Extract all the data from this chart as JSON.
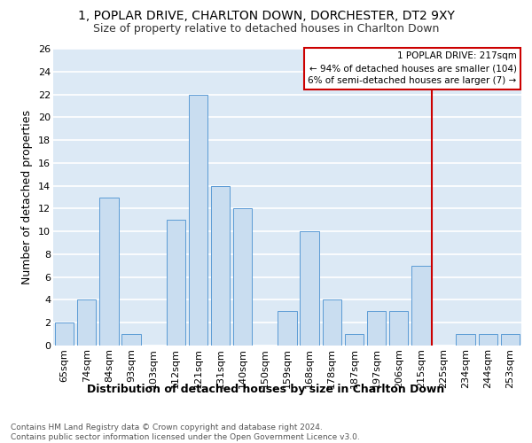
{
  "title1": "1, POPLAR DRIVE, CHARLTON DOWN, DORCHESTER, DT2 9XY",
  "title2": "Size of property relative to detached houses in Charlton Down",
  "xlabel": "Distribution of detached houses by size in Charlton Down",
  "ylabel": "Number of detached properties",
  "footnote": "Contains HM Land Registry data © Crown copyright and database right 2024.\nContains public sector information licensed under the Open Government Licence v3.0.",
  "categories": [
    "65sqm",
    "74sqm",
    "84sqm",
    "93sqm",
    "103sqm",
    "112sqm",
    "121sqm",
    "131sqm",
    "140sqm",
    "150sqm",
    "159sqm",
    "168sqm",
    "178sqm",
    "187sqm",
    "197sqm",
    "206sqm",
    "215sqm",
    "225sqm",
    "234sqm",
    "244sqm",
    "253sqm"
  ],
  "values": [
    2,
    4,
    13,
    1,
    0,
    11,
    22,
    14,
    12,
    0,
    3,
    10,
    4,
    1,
    3,
    3,
    7,
    0,
    1,
    1,
    1
  ],
  "bar_color": "#c9ddf0",
  "bar_edge_color": "#5b9bd5",
  "red_line_index": 16,
  "red_line_color": "#cc0000",
  "legend_title": "1 POPLAR DRIVE: 217sqm",
  "legend_line1": "← 94% of detached houses are smaller (104)",
  "legend_line2": "6% of semi-detached houses are larger (7) →",
  "ylim": [
    0,
    26
  ],
  "yticks": [
    0,
    2,
    4,
    6,
    8,
    10,
    12,
    14,
    16,
    18,
    20,
    22,
    24,
    26
  ],
  "background_color": "#dce9f5",
  "grid_color": "#ffffff",
  "title_fontsize": 10,
  "subtitle_fontsize": 9,
  "axis_label_fontsize": 9,
  "tick_fontsize": 8,
  "footnote_fontsize": 6.5
}
